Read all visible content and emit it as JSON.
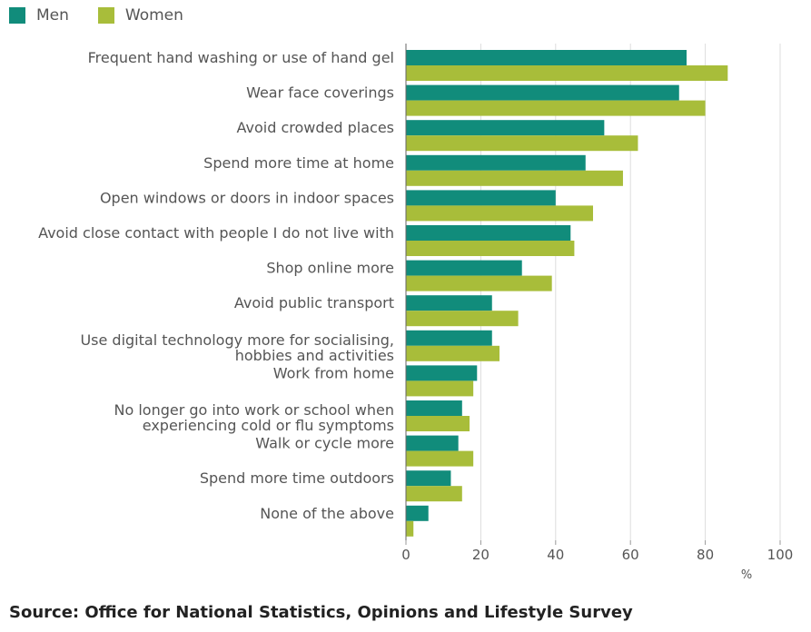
{
  "chart_data": {
    "type": "bar",
    "orientation": "horizontal",
    "categories": [
      "Frequent hand washing or use of hand gel",
      "Wear face coverings",
      "Avoid crowded places",
      "Spend more time at home",
      "Open windows or doors in indoor spaces",
      "Avoid close contact with people I do not live with",
      "Shop online more",
      "Avoid public transport",
      "Use digital technology more for socialising, hobbies and activities",
      "Work from home",
      "No longer go into work or school when experiencing cold or flu symptoms",
      "Walk or cycle more",
      "Spend more time outdoors",
      "None of the above"
    ],
    "category_lines": [
      [
        "Frequent hand washing or use of hand gel"
      ],
      [
        "Wear face coverings"
      ],
      [
        "Avoid crowded places"
      ],
      [
        "Spend more time at home"
      ],
      [
        "Open windows or doors in indoor spaces"
      ],
      [
        "Avoid close contact with people I do not live with"
      ],
      [
        "Shop online more"
      ],
      [
        "Avoid public transport"
      ],
      [
        "Use digital technology more for socialising,",
        "hobbies and activities"
      ],
      [
        "Work from home"
      ],
      [
        "No longer go into work or school when",
        "experiencing cold or flu symptoms"
      ],
      [
        "Walk or cycle more"
      ],
      [
        "Spend more time outdoors"
      ],
      [
        "None of the above"
      ]
    ],
    "series": [
      {
        "name": "Men",
        "color": "#118c7b",
        "values": [
          75,
          73,
          53,
          48,
          40,
          44,
          31,
          23,
          23,
          19,
          15,
          14,
          12,
          6
        ]
      },
      {
        "name": "Women",
        "color": "#a8bd3a",
        "values": [
          86,
          80,
          62,
          58,
          50,
          45,
          39,
          30,
          25,
          18,
          17,
          18,
          15,
          2
        ]
      }
    ],
    "xlim": [
      0,
      100
    ],
    "xticks": [
      0,
      20,
      40,
      60,
      80,
      100
    ],
    "xlabel": "%",
    "ylabel": "",
    "grid": true,
    "legend_position": "top-left"
  },
  "source": "Source: Office for National Statistics, Opinions and Lifestyle Survey"
}
